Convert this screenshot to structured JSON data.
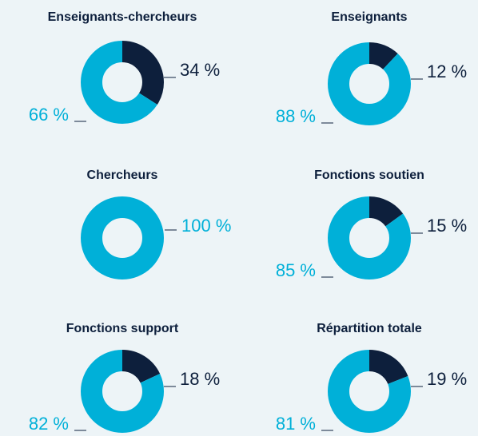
{
  "chart_data": [
    {
      "type": "pie",
      "title": "Enseignants-chercheurs",
      "values": [
        34,
        66
      ],
      "value_labels": [
        "34 %",
        "66 %"
      ],
      "colors": [
        "#0d1f3c",
        "#00b0d8"
      ]
    },
    {
      "type": "pie",
      "title": "Enseignants",
      "values": [
        12,
        88
      ],
      "value_labels": [
        "12 %",
        "88 %"
      ],
      "colors": [
        "#0d1f3c",
        "#00b0d8"
      ]
    },
    {
      "type": "pie",
      "title": "Chercheurs",
      "values": [
        100
      ],
      "value_labels": [
        "100 %"
      ],
      "colors": [
        "#00b0d8"
      ]
    },
    {
      "type": "pie",
      "title": "Fonctions soutien",
      "values": [
        15,
        85
      ],
      "value_labels": [
        "15 %",
        "85 %"
      ],
      "colors": [
        "#0d1f3c",
        "#00b0d8"
      ]
    },
    {
      "type": "pie",
      "title": "Fonctions support",
      "values": [
        18,
        82
      ],
      "value_labels": [
        "18 %",
        "82 %"
      ],
      "colors": [
        "#0d1f3c",
        "#00b0d8"
      ]
    },
    {
      "type": "pie",
      "title": "Répartition totale",
      "values": [
        19,
        81
      ],
      "value_labels": [
        "19 %",
        "81 %"
      ],
      "colors": [
        "#0d1f3c",
        "#00b0d8"
      ]
    }
  ]
}
